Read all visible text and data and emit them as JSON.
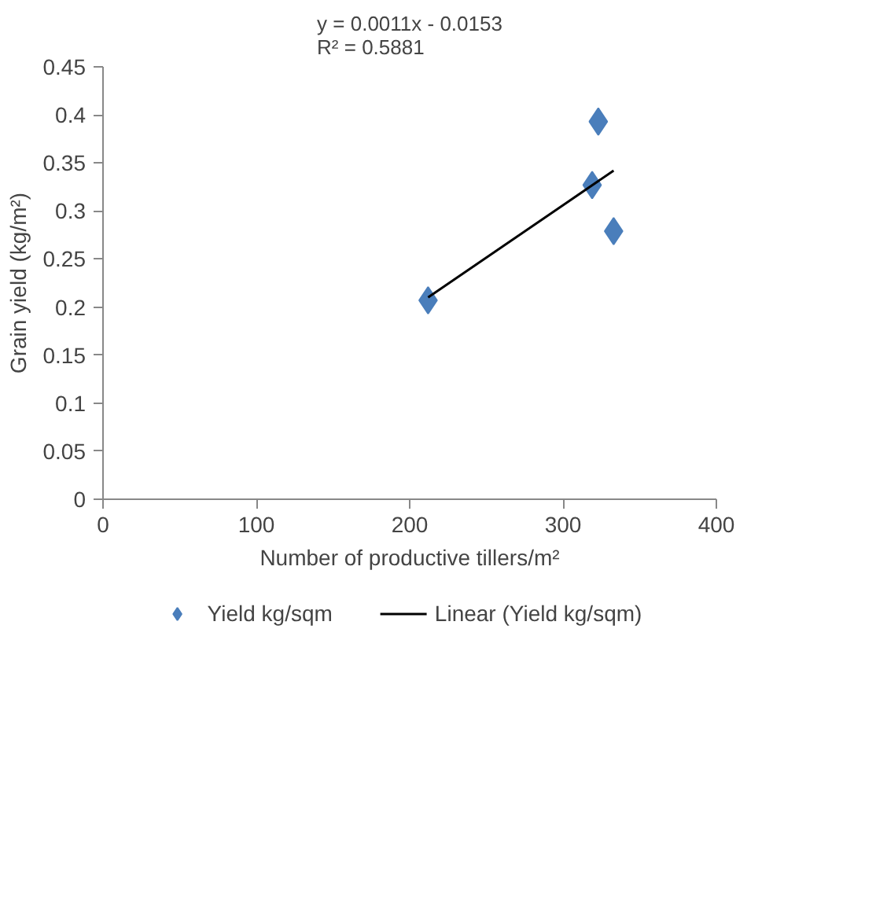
{
  "chart_data": {
    "type": "scatter",
    "title": "y = 0.0011x - 0.0153\nR² = 0.5881",
    "xlabel": "Number of productive tillers/m²",
    "ylabel": "Grain yield (kg/m²)",
    "xlim": [
      0,
      400
    ],
    "xticks": [
      0,
      100,
      200,
      300,
      400
    ],
    "ylim": [
      0,
      0.45
    ],
    "yticks": [
      0,
      0.05,
      0.1,
      0.15,
      0.2,
      0.25,
      0.3,
      0.35,
      0.4,
      0.45
    ],
    "grid": false,
    "legend": "bottom",
    "marker": "diamond",
    "series": [
      {
        "name": "Yield kg/sqm",
        "type": "scatter",
        "color": "#4a7ebb",
        "x": [
          212,
          319,
          323,
          333
        ],
        "values": [
          0.207,
          0.327,
          0.393,
          0.279
        ]
      },
      {
        "name": "Linear (Yield kg/sqm)",
        "type": "line",
        "color": "#000000",
        "line_style": "solid",
        "marker": "none",
        "x": [
          212,
          333
        ],
        "values": [
          0.21,
          0.342
        ]
      }
    ]
  }
}
